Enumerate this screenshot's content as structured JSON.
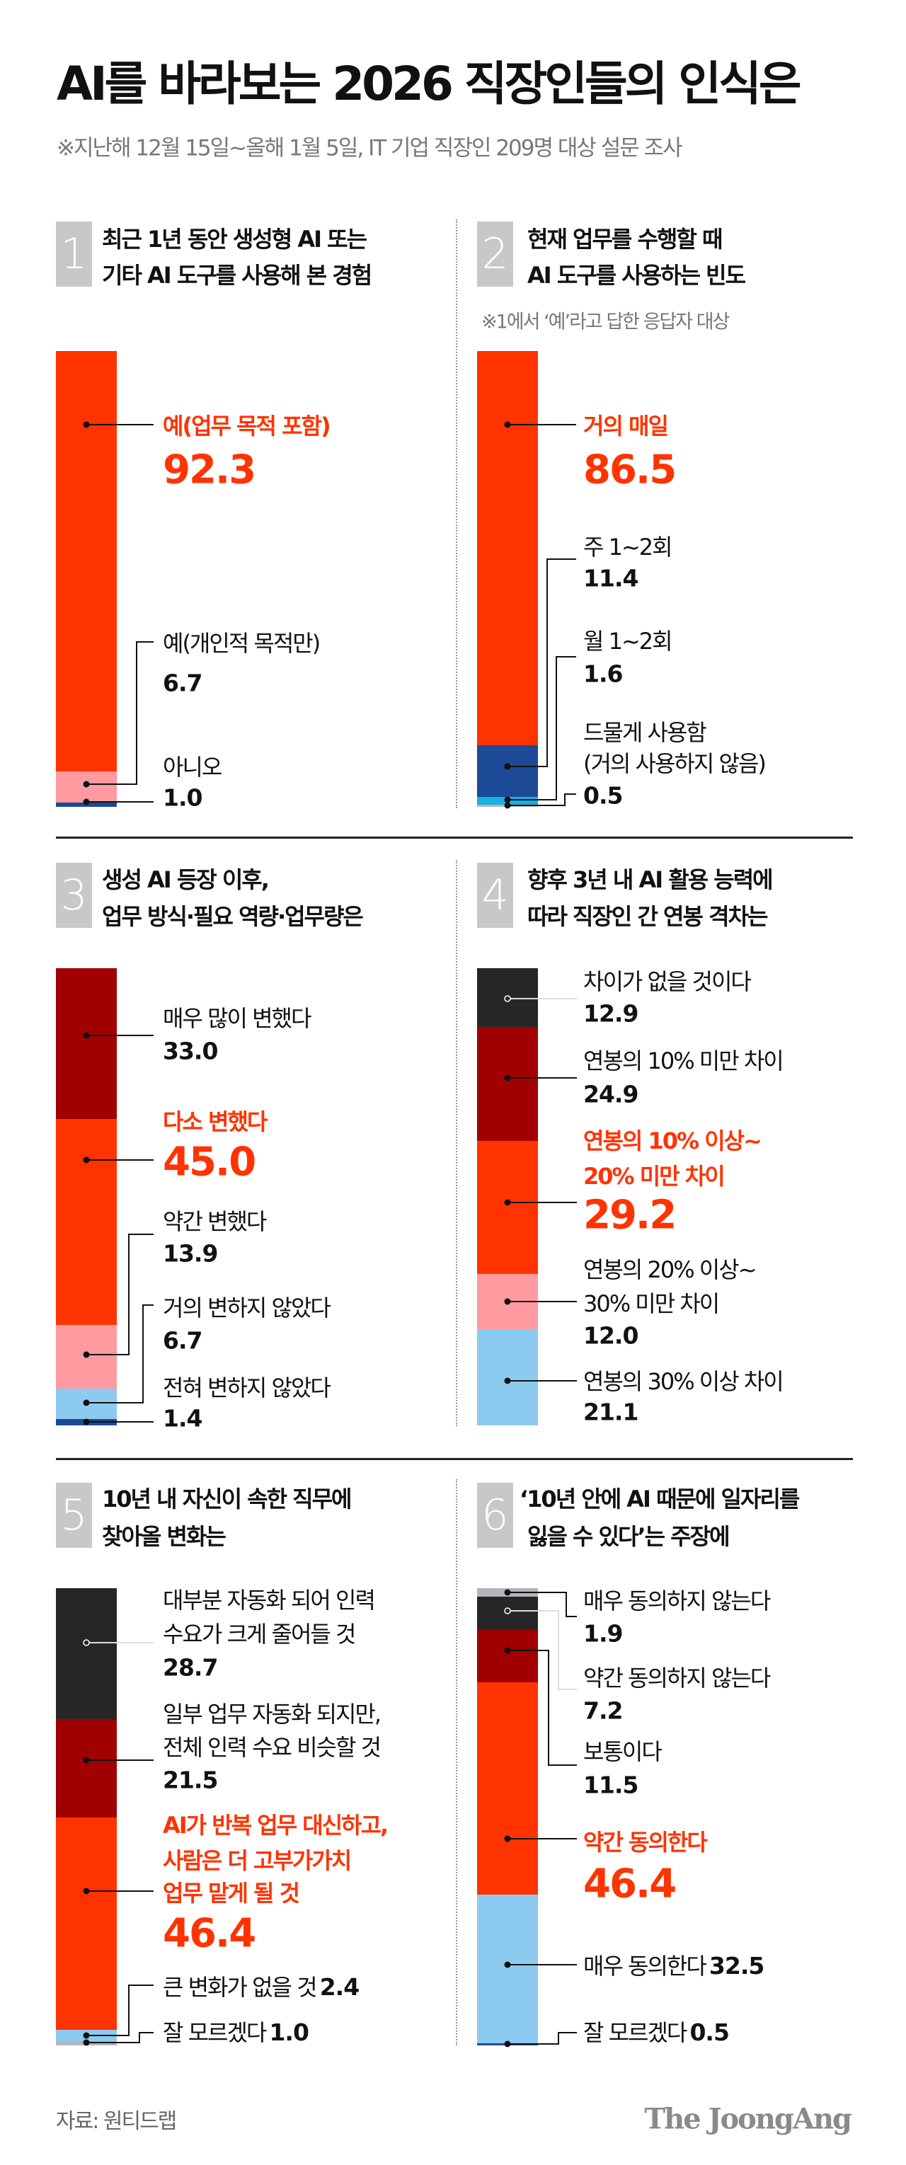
{
  "header": {
    "title": "AI를 바라보는 2026 직장인들의 인식은",
    "subtitle": "※지난해 12월 15일~올해 1월 5일, IT 기업 직장인 209명 대상 설문 조사"
  },
  "colors": {
    "red": "#ff3300",
    "dark_red": "#a00000",
    "pink": "#ff9aa0",
    "light_blue": "#8ccbef",
    "dark_blue": "#1c4a96",
    "cyan": "#18b0e0",
    "black": "#262626",
    "gray": "#b4b4bc",
    "number_box": "#c8c8c8"
  },
  "chart_data": [
    {
      "type": "bar",
      "stacked": true,
      "number": "1",
      "title_lines": [
        "최근 1년 동안 생성형 AI 또는",
        "기타 AI 도구를 사용해 본 경험"
      ],
      "segments": [
        {
          "label_lines": [
            "예(업무 목적 포함)"
          ],
          "value": 92.3,
          "color": "#ff3300",
          "highlight": true
        },
        {
          "label_lines": [
            "예(개인적 목적만)"
          ],
          "value": 6.7,
          "color": "#ff9aa0"
        },
        {
          "label_lines": [
            "아니오"
          ],
          "value": 1.0,
          "color": "#1c4a96"
        }
      ]
    },
    {
      "type": "bar",
      "stacked": true,
      "number": "2",
      "title_lines": [
        "현재 업무를 수행할 때",
        "AI 도구를 사용하는 빈도"
      ],
      "note": "※1에서 ‘예’라고 답한 응답자 대상",
      "segments": [
        {
          "label_lines": [
            "거의 매일"
          ],
          "value": 86.5,
          "color": "#ff3300",
          "highlight": true
        },
        {
          "label_lines": [
            "주 1~2회"
          ],
          "value": 11.4,
          "color": "#1c4a96"
        },
        {
          "label_lines": [
            "월 1~2회"
          ],
          "value": 1.6,
          "color": "#18b0e0"
        },
        {
          "label_lines": [
            "드물게 사용함",
            "(거의 사용하지 않음)"
          ],
          "value": 0.5,
          "color": "#b4b4bc"
        }
      ]
    },
    {
      "type": "bar",
      "stacked": true,
      "number": "3",
      "title_lines": [
        "생성 AI 등장 이후,",
        "업무 방식·필요 역량·업무량은"
      ],
      "segments": [
        {
          "label_lines": [
            "매우 많이 변했다"
          ],
          "value": 33.0,
          "color": "#a00000"
        },
        {
          "label_lines": [
            "다소 변했다"
          ],
          "value": 45.0,
          "color": "#ff3300",
          "highlight": true
        },
        {
          "label_lines": [
            "약간 변했다"
          ],
          "value": 13.9,
          "color": "#ff9aa0"
        },
        {
          "label_lines": [
            "거의 변하지 않았다"
          ],
          "value": 6.7,
          "color": "#8ccbef"
        },
        {
          "label_lines": [
            "전혀 변하지 않았다"
          ],
          "value": 1.4,
          "color": "#1c4a96"
        }
      ]
    },
    {
      "type": "bar",
      "stacked": true,
      "number": "4",
      "title_lines": [
        "향후 3년 내 AI 활용 능력에",
        "따라 직장인 간 연봉 격차는"
      ],
      "segments": [
        {
          "label_lines": [
            "차이가 없을 것이다"
          ],
          "value": 12.9,
          "color": "#262626"
        },
        {
          "label_lines": [
            "연봉의 10% 미만 차이"
          ],
          "value": 24.9,
          "color": "#a00000"
        },
        {
          "label_lines": [
            "연봉의 10% 이상~",
            "20% 미만 차이"
          ],
          "value": 29.2,
          "color": "#ff3300",
          "highlight": true
        },
        {
          "label_lines": [
            "연봉의 20% 이상~",
            "30% 미만 차이"
          ],
          "value": 12.0,
          "color": "#ff9aa0"
        },
        {
          "label_lines": [
            "연봉의 30% 이상 차이"
          ],
          "value": 21.1,
          "color": "#8ccbef"
        }
      ]
    },
    {
      "type": "bar",
      "stacked": true,
      "number": "5",
      "title_lines": [
        "10년 내 자신이 속한 직무에",
        "찾아올 변화는"
      ],
      "segments": [
        {
          "label_lines": [
            "대부분 자동화 되어 인력",
            "수요가 크게 줄어들 것"
          ],
          "value": 28.7,
          "color": "#262626"
        },
        {
          "label_lines": [
            "일부 업무 자동화 되지만,",
            "전체 인력 수요 비슷할 것"
          ],
          "value": 21.5,
          "color": "#a00000"
        },
        {
          "label_lines": [
            "AI가 반복 업무 대신하고,",
            "사람은 더 고부가가치",
            "업무 맡게 될 것"
          ],
          "value": 46.4,
          "color": "#ff3300",
          "highlight": true
        },
        {
          "label_lines": [
            "큰 변화가 없을 것"
          ],
          "value": 2.4,
          "color": "#8ccbef"
        },
        {
          "label_lines": [
            "잘 모르겠다"
          ],
          "value": 1.0,
          "color": "#b4b4bc"
        }
      ]
    },
    {
      "type": "bar",
      "stacked": true,
      "number": "6",
      "title_lines": [
        "‘10년 안에 AI 때문에 일자리를",
        "잃을 수 있다’는 주장에"
      ],
      "segments": [
        {
          "label_lines": [
            "매우 동의하지 않는다"
          ],
          "value": 1.9,
          "color": "#b4b4bc"
        },
        {
          "label_lines": [
            "약간 동의하지 않는다"
          ],
          "value": 7.2,
          "color": "#262626"
        },
        {
          "label_lines": [
            "보통이다"
          ],
          "value": 11.5,
          "color": "#a00000"
        },
        {
          "label_lines": [
            "약간 동의한다"
          ],
          "value": 46.4,
          "color": "#ff3300",
          "highlight": true
        },
        {
          "label_lines": [
            "매우 동의한다"
          ],
          "value": 32.5,
          "color": "#8ccbef"
        },
        {
          "label_lines": [
            "잘 모르겠다"
          ],
          "value": 0.5,
          "color": "#1c4a96"
        }
      ]
    }
  ],
  "footer": {
    "source": "자료: 원티드랩",
    "logo": "The JoongAng"
  }
}
